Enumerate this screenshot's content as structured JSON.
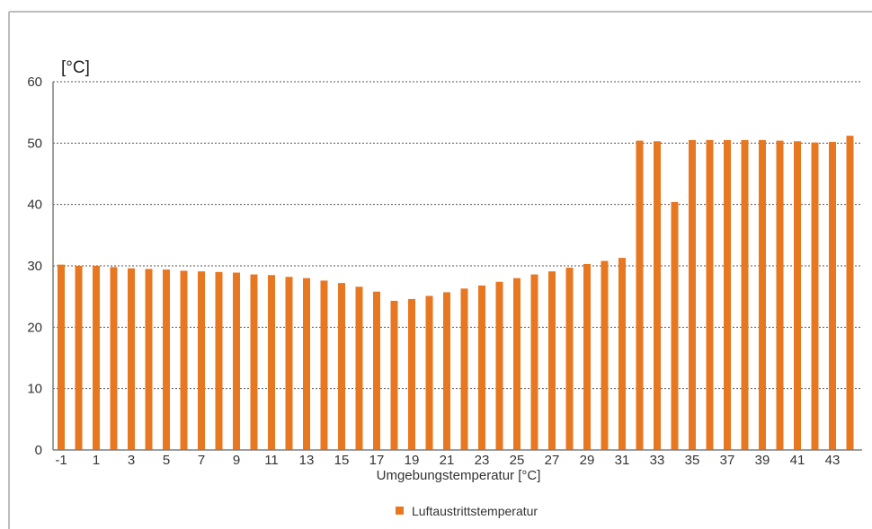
{
  "chart_data": {
    "type": "bar",
    "title": "",
    "ylabel": "[°C]",
    "xlabel": "Umgebungstemperatur [°C]",
    "ylim": [
      0,
      60
    ],
    "yticks": [
      0,
      10,
      20,
      30,
      40,
      50,
      60
    ],
    "grid": true,
    "legend_position": "bottom-center",
    "bar_color": "#E87722",
    "categories": [
      -1,
      0,
      1,
      2,
      3,
      4,
      5,
      6,
      7,
      8,
      9,
      10,
      11,
      12,
      13,
      14,
      15,
      16,
      17,
      18,
      19,
      20,
      21,
      22,
      23,
      24,
      25,
      26,
      27,
      28,
      29,
      30,
      31,
      32,
      33,
      34,
      35,
      36,
      37,
      38,
      39,
      40,
      41,
      42,
      43,
      44
    ],
    "x_tick_labels": [
      "-1",
      "1",
      "3",
      "5",
      "7",
      "9",
      "11",
      "13",
      "15",
      "17",
      "19",
      "21",
      "23",
      "25",
      "27",
      "29",
      "31",
      "33",
      "35",
      "37",
      "39",
      "41",
      "43"
    ],
    "series": [
      {
        "name": "Luftaustrittstemperatur",
        "values": [
          30.2,
          30.0,
          30.0,
          29.8,
          29.6,
          29.5,
          29.4,
          29.2,
          29.1,
          29.0,
          28.9,
          28.6,
          28.5,
          28.2,
          28.0,
          27.6,
          27.2,
          26.6,
          25.8,
          24.3,
          24.6,
          25.1,
          25.7,
          26.3,
          26.8,
          27.4,
          28.0,
          28.6,
          29.1,
          29.7,
          30.3,
          30.8,
          31.3,
          50.4,
          50.3,
          40.4,
          50.5,
          50.5,
          50.5,
          50.5,
          50.5,
          50.4,
          50.3,
          50.1,
          50.2,
          51.2
        ]
      }
    ]
  }
}
